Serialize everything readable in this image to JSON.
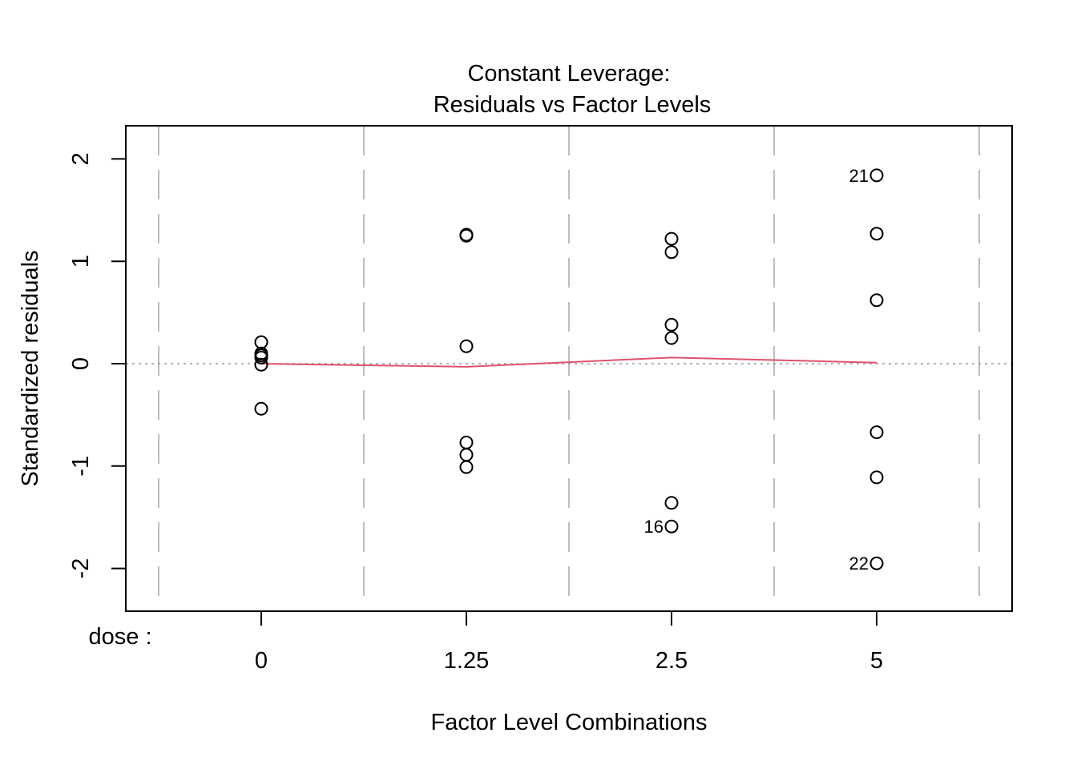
{
  "chart_data": {
    "type": "scatter",
    "title": "Constant Leverage:",
    "subtitle": "Residuals vs Factor Levels",
    "xlabel": "Factor Level Combinations",
    "ylabel": "Standardized residuals",
    "factor_label": "dose :",
    "categories": [
      "0",
      "1.25",
      "2.5",
      "5"
    ],
    "ylim": [
      -2.4,
      2.35
    ],
    "yticks": [
      -2,
      -1,
      0,
      1,
      2
    ],
    "ytick_labels": [
      "-2",
      "-1",
      "0",
      "1",
      "2"
    ],
    "points": [
      {
        "x": "0",
        "y": 0.21
      },
      {
        "x": "0",
        "y": 0.1
      },
      {
        "x": "0",
        "y": 0.08
      },
      {
        "x": "0",
        "y": 0.06
      },
      {
        "x": "0",
        "y": -0.01
      },
      {
        "x": "0",
        "y": -0.44
      },
      {
        "x": "1.25",
        "y": 1.26
      },
      {
        "x": "1.25",
        "y": 1.25
      },
      {
        "x": "1.25",
        "y": 0.17
      },
      {
        "x": "1.25",
        "y": -0.77
      },
      {
        "x": "1.25",
        "y": -0.89
      },
      {
        "x": "1.25",
        "y": -1.01
      },
      {
        "x": "2.5",
        "y": 1.22
      },
      {
        "x": "2.5",
        "y": 1.09
      },
      {
        "x": "2.5",
        "y": 0.38
      },
      {
        "x": "2.5",
        "y": 0.25
      },
      {
        "x": "2.5",
        "y": -1.36
      },
      {
        "x": "2.5",
        "y": -1.59,
        "label": "16"
      },
      {
        "x": "5",
        "y": 1.84,
        "label": "21"
      },
      {
        "x": "5",
        "y": 1.27
      },
      {
        "x": "5",
        "y": 0.62
      },
      {
        "x": "5",
        "y": -0.67
      },
      {
        "x": "5",
        "y": -1.11
      },
      {
        "x": "5",
        "y": -1.95,
        "label": "22"
      }
    ],
    "smooth_line": {
      "x": [
        "0",
        "1.25",
        "2.5",
        "5"
      ],
      "y": [
        0.0,
        -0.03,
        0.06,
        0.01
      ],
      "color": "#DF536B"
    },
    "reference_line": {
      "y": 0,
      "style": "dotted",
      "color": "#999999"
    },
    "separator_color": "#BEBEBE"
  }
}
